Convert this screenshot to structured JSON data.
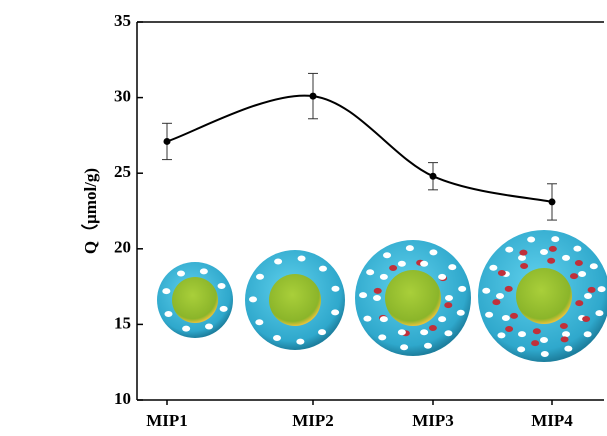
{
  "chart_data": {
    "type": "line",
    "y_label": "Q（μmol/g)",
    "categories": [
      "MIP1",
      "MIP2",
      "MIP3",
      "MIP4"
    ],
    "values": [
      27.1,
      30.1,
      24.8,
      23.1
    ],
    "errors": [
      1.2,
      1.5,
      0.9,
      1.2
    ],
    "color": "#000000",
    "ylim": [
      10,
      35
    ],
    "yticks": [
      10,
      15,
      20,
      25,
      30,
      35
    ]
  }
}
